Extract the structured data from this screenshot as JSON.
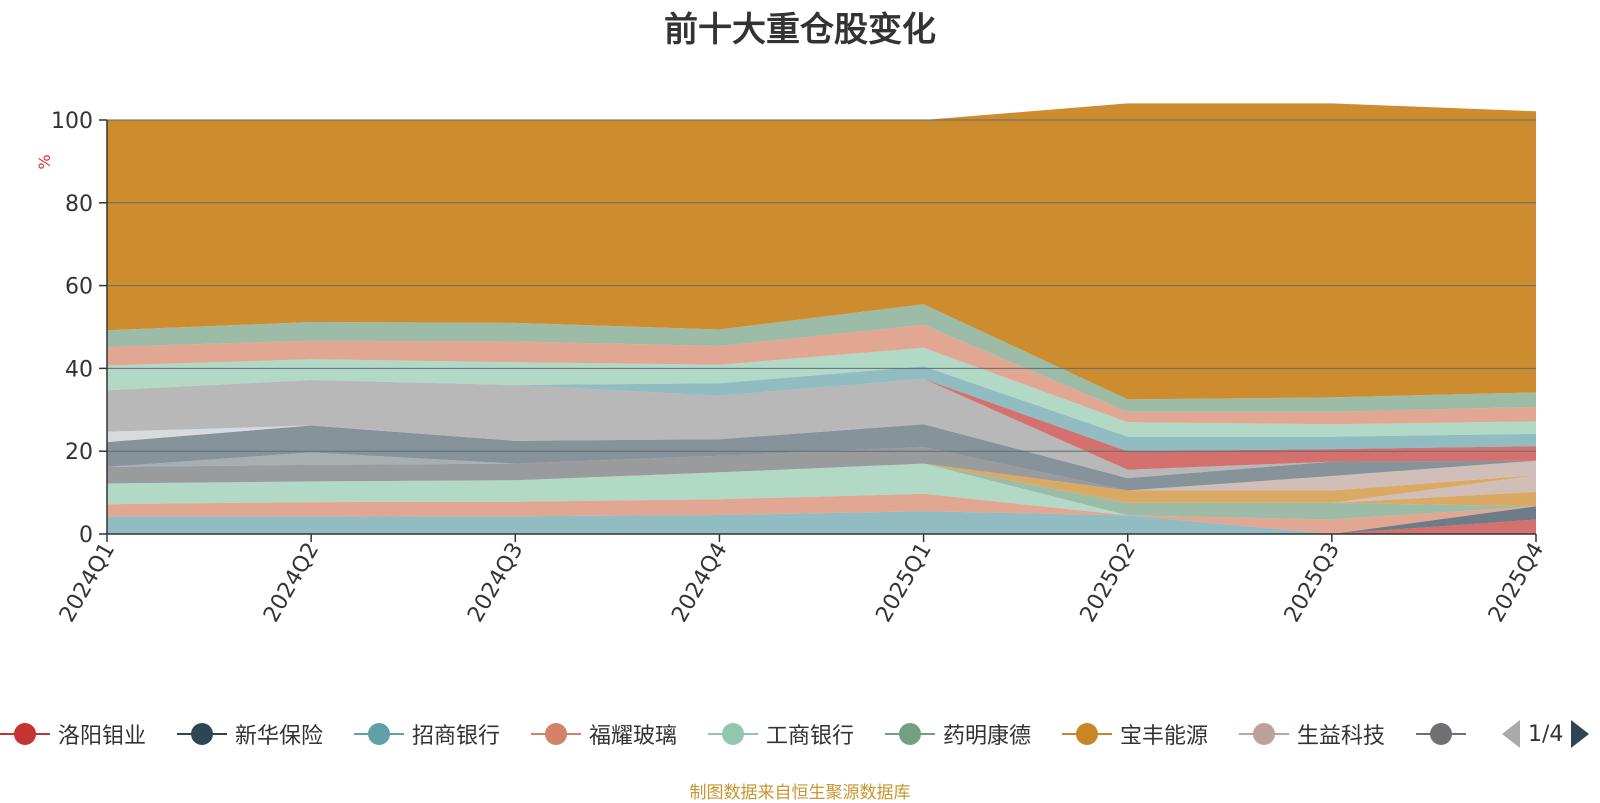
{
  "chart_data": {
    "type": "area",
    "title": "前十大重仓股变化",
    "ylabel": "%",
    "ylim": [
      0,
      100
    ],
    "yticks": [
      0,
      20,
      40,
      60,
      80,
      100
    ],
    "categories": [
      "2024Q1",
      "2024Q2",
      "2024Q3",
      "2024Q4",
      "2025Q1",
      "2025Q2",
      "2025Q3",
      "2025Q4"
    ],
    "stacked": true,
    "grid": true,
    "legend_position": "bottom",
    "series": [
      {
        "name": "洛阳钼业",
        "color": "#c23531",
        "values": [
          0,
          0,
          0,
          0,
          0,
          0,
          0,
          3.5
        ]
      },
      {
        "name": "新华保险",
        "color": "#2f4554",
        "values": [
          0,
          0,
          0,
          0,
          0,
          0,
          0,
          3.2
        ]
      },
      {
        "name": "招商银行",
        "color": "#61a0a8",
        "values": [
          4.2,
          4.2,
          4.3,
          4.6,
          5.5,
          4.5,
          0,
          0
        ]
      },
      {
        "name": "福耀玻璃",
        "color": "#d48265",
        "values": [
          3.0,
          3.5,
          3.5,
          3.8,
          4.2,
          0,
          3.5,
          0
        ]
      },
      {
        "name": "工商银行",
        "color": "#91c7ae",
        "values": [
          5.0,
          5.0,
          5.2,
          6.5,
          7.3,
          0,
          0,
          0
        ]
      },
      {
        "name": "药明康德",
        "color": "#749f83",
        "values": [
          0,
          0,
          0,
          0,
          0,
          3.0,
          4.0,
          0
        ]
      },
      {
        "name": "宝丰能源",
        "color": "#ca8622",
        "values": [
          0,
          0,
          0,
          0,
          0,
          0,
          0,
          3.5
        ]
      },
      {
        "name": "生益科技",
        "color": "#bda29a",
        "values": [
          0,
          0,
          0,
          0,
          0,
          0,
          0,
          4.0
        ]
      },
      {
        "values": [
          0,
          0,
          0,
          0,
          0,
          3.0,
          3.0,
          0
        ]
      },
      {
        "values": [
          0,
          0,
          0,
          0,
          0,
          0,
          3.5,
          3.5
        ]
      },
      {
        "values": [
          4.0,
          4.0,
          4.0,
          4.0,
          4.0,
          0,
          0,
          0
        ]
      },
      {
        "values": [
          0,
          3.0,
          0,
          0,
          0,
          0,
          0,
          0
        ]
      },
      {
        "values": [
          6.0,
          6.5,
          5.5,
          4.0,
          5.5,
          3.0,
          3.5,
          0
        ]
      },
      {
        "values": [
          2.5,
          0,
          0,
          0,
          0,
          0,
          0,
          0
        ]
      },
      {
        "values": [
          10.0,
          11.0,
          13.5,
          10.5,
          11.0,
          2.0,
          0,
          0
        ]
      },
      {
        "values": [
          0,
          0,
          0,
          0,
          0,
          4.5,
          3.0,
          3.5
        ]
      },
      {
        "values": [
          0,
          0,
          0,
          3.0,
          3.0,
          3.5,
          3.0,
          3.0
        ]
      },
      {
        "values": [
          6.0,
          5.0,
          5.5,
          4.5,
          4.5,
          3.5,
          3.0,
          3.0
        ]
      },
      {
        "values": [
          4.5,
          4.5,
          5.0,
          4.5,
          5.5,
          2.5,
          3.0,
          3.5
        ]
      },
      {
        "values": [
          4.0,
          4.5,
          4.5,
          4.0,
          5.0,
          3.0,
          3.5,
          3.5
        ]
      },
      {
        "values": [
          50.8,
          48.8,
          49.0,
          50.6,
          44.5,
          71.5,
          71.0,
          67.9
        ]
      }
    ]
  },
  "legend": {
    "items": [
      {
        "label": "洛阳钼业",
        "color": "#c23531"
      },
      {
        "label": "新华保险",
        "color": "#2f4554"
      },
      {
        "label": "招商银行",
        "color": "#61a0a8"
      },
      {
        "label": "福耀玻璃",
        "color": "#d48265"
      },
      {
        "label": "工商银行",
        "color": "#91c7ae"
      },
      {
        "label": "药明康德",
        "color": "#749f83"
      },
      {
        "label": "宝丰能源",
        "color": "#ca8622"
      },
      {
        "label": "生益科技",
        "color": "#bda29a"
      },
      {
        "label": "",
        "color": "#6e7074"
      }
    ],
    "page": "1/4"
  },
  "footer": {
    "source": "制图数据来自恒生聚源数据库"
  },
  "palette_extra": [
    "#546570",
    "#c4ccd3",
    "#9a9a9a",
    "#c23531",
    "#61a0a8",
    "#91c7ae",
    "#d48265",
    "#749f83",
    "#ca8622",
    "#bda29a",
    "#6e7074",
    "#808d94"
  ]
}
